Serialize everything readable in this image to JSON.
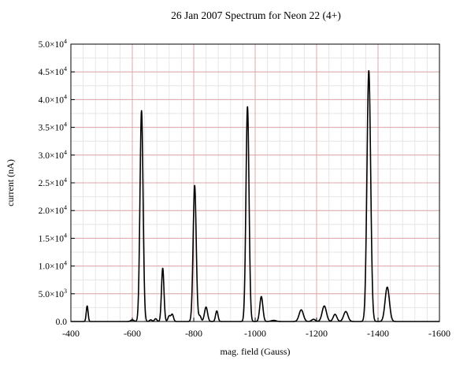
{
  "chart_data": {
    "type": "line",
    "title": "26 Jan 2007 Spectrum for Neon 22 (4+)",
    "xlabel": "mag. field (Gauss)",
    "ylabel": "current (nA)",
    "xlim": [
      -400,
      -1600
    ],
    "ylim": [
      0,
      50000
    ],
    "x_reversed": true,
    "grid": true,
    "x_major_ticks": [
      -400,
      -600,
      -800,
      -1000,
      -1200,
      -1400,
      -1600
    ],
    "x_tick_labels": [
      "-400",
      "-600",
      "-800",
      "-1000",
      "-1200",
      "-1400",
      "-1600"
    ],
    "x_minor_step": 40,
    "y_major_ticks": [
      0,
      5000,
      10000,
      15000,
      20000,
      25000,
      30000,
      35000,
      40000,
      45000,
      50000
    ],
    "y_tick_labels": [
      {
        "mantissa": "0.0",
        "exp": ""
      },
      {
        "mantissa": "5.0×10",
        "exp": "3"
      },
      {
        "mantissa": "1.0×10",
        "exp": "4"
      },
      {
        "mantissa": "1.5×10",
        "exp": "4"
      },
      {
        "mantissa": "2.0×10",
        "exp": "4"
      },
      {
        "mantissa": "2.5×10",
        "exp": "4"
      },
      {
        "mantissa": "3.0×10",
        "exp": "4"
      },
      {
        "mantissa": "3.5×10",
        "exp": "4"
      },
      {
        "mantissa": "4.0×10",
        "exp": "4"
      },
      {
        "mantissa": "4.5×10",
        "exp": "4"
      },
      {
        "mantissa": "5.0×10",
        "exp": "4"
      }
    ],
    "y_minor_step": 2500,
    "series": [
      {
        "color": "#000000",
        "baseline": 0,
        "peaks": [
          {
            "x": -453,
            "y": 2800,
            "w": 3
          },
          {
            "x": -600,
            "y": 300,
            "w": 5
          },
          {
            "x": -630,
            "y": 38000,
            "w": 5
          },
          {
            "x": -660,
            "y": 300,
            "w": 4
          },
          {
            "x": -676,
            "y": 500,
            "w": 4
          },
          {
            "x": -699,
            "y": 9600,
            "w": 4
          },
          {
            "x": -720,
            "y": 1000,
            "w": 4
          },
          {
            "x": -730,
            "y": 1300,
            "w": 4
          },
          {
            "x": -803,
            "y": 24500,
            "w": 5
          },
          {
            "x": -820,
            "y": 1000,
            "w": 4
          },
          {
            "x": -840,
            "y": 2600,
            "w": 5
          },
          {
            "x": -875,
            "y": 1900,
            "w": 4
          },
          {
            "x": -975,
            "y": 38700,
            "w": 5
          },
          {
            "x": -1020,
            "y": 4500,
            "w": 5
          },
          {
            "x": -1060,
            "y": 200,
            "w": 8
          },
          {
            "x": -1150,
            "y": 2100,
            "w": 7
          },
          {
            "x": -1190,
            "y": 400,
            "w": 6
          },
          {
            "x": -1225,
            "y": 2800,
            "w": 7
          },
          {
            "x": -1260,
            "y": 1300,
            "w": 6
          },
          {
            "x": -1295,
            "y": 1800,
            "w": 7
          },
          {
            "x": -1370,
            "y": 45200,
            "w": 6
          },
          {
            "x": -1430,
            "y": 6200,
            "w": 7
          }
        ]
      }
    ]
  }
}
